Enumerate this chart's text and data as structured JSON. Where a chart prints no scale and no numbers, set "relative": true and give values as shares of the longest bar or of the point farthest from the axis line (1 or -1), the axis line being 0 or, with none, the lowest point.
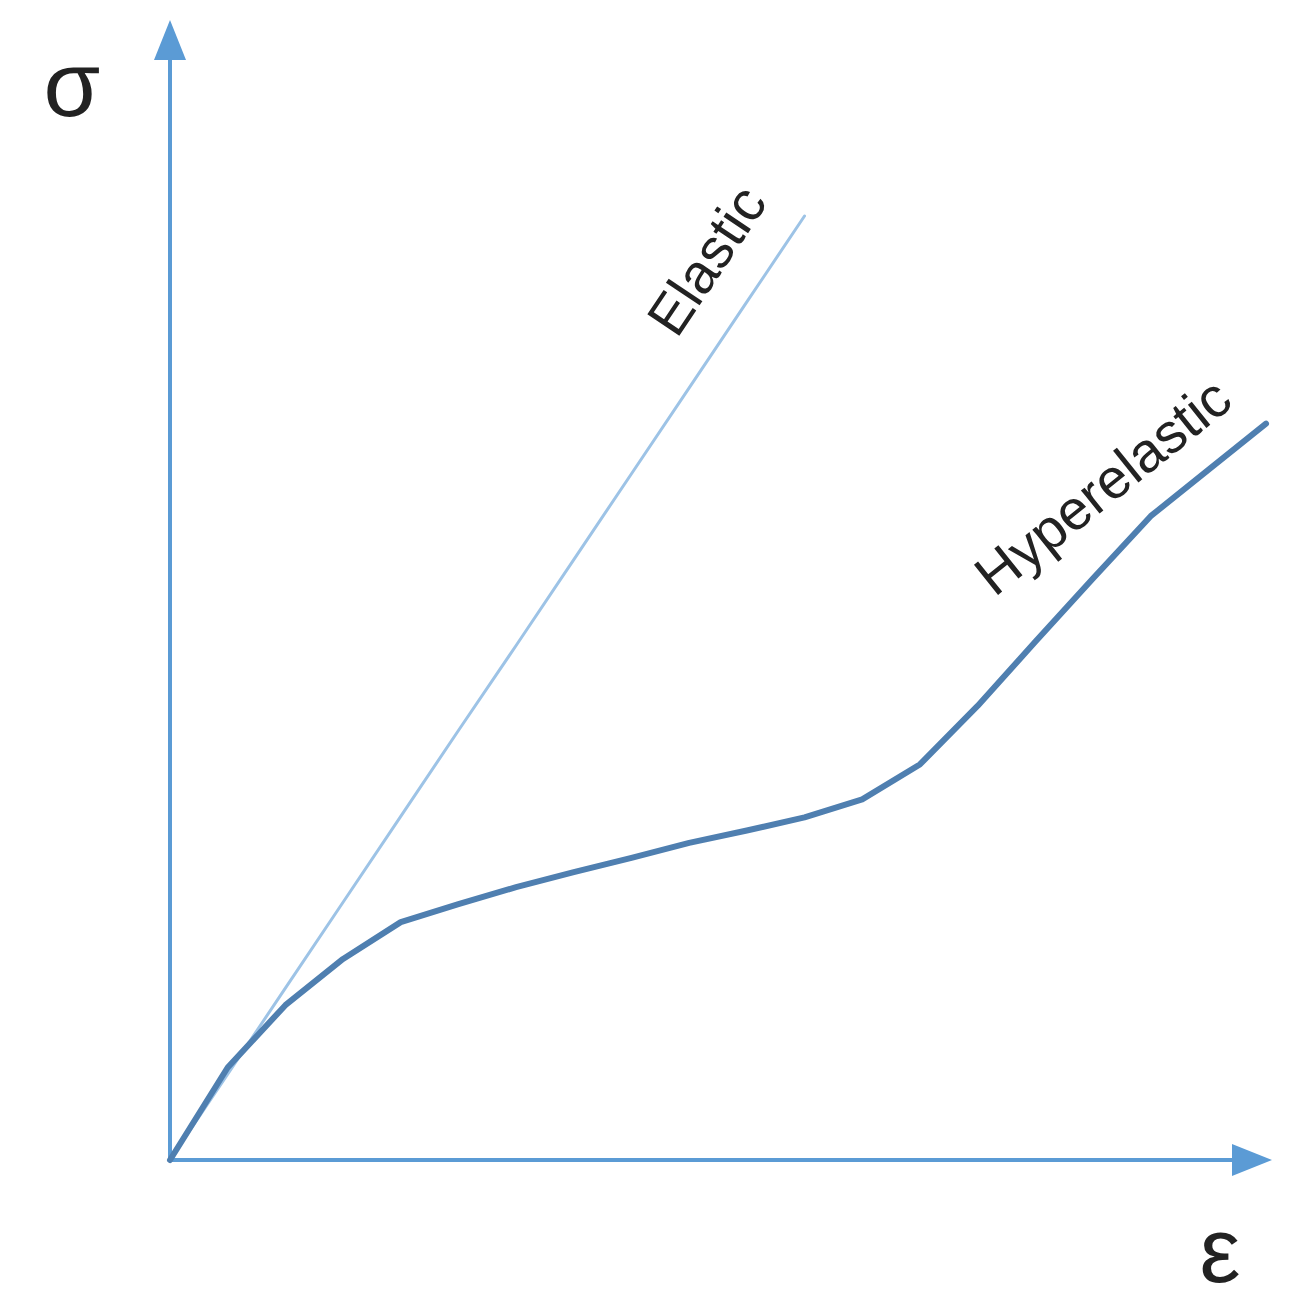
{
  "chart_data": {
    "type": "line",
    "relative": true,
    "xlabel": "ε",
    "ylabel": "σ",
    "categories": [
      null,
      null,
      null,
      null,
      null,
      null,
      null,
      null,
      null,
      null,
      null,
      null,
      null,
      null,
      null,
      null,
      null,
      null,
      null,
      null
    ],
    "series": [
      {
        "name": "Elastic",
        "color": "#9dc3e6",
        "values": [
          0,
          0.091,
          0.182,
          0.273,
          0.364,
          0.455,
          0.545,
          0.636,
          0.727,
          0.818,
          0.909,
          1,
          null,
          null,
          null,
          null,
          null,
          null,
          null,
          null
        ]
      },
      {
        "name": "Hyperelastic",
        "color": "#4f7fb0",
        "values": [
          0,
          0.098,
          0.164,
          0.213,
          0.252,
          0.271,
          0.289,
          0.305,
          0.32,
          0.336,
          0.349,
          0.363,
          0.382,
          0.419,
          0.481,
          0.549,
          0.616,
          0.682,
          0.731,
          0.78
        ]
      }
    ]
  }
}
